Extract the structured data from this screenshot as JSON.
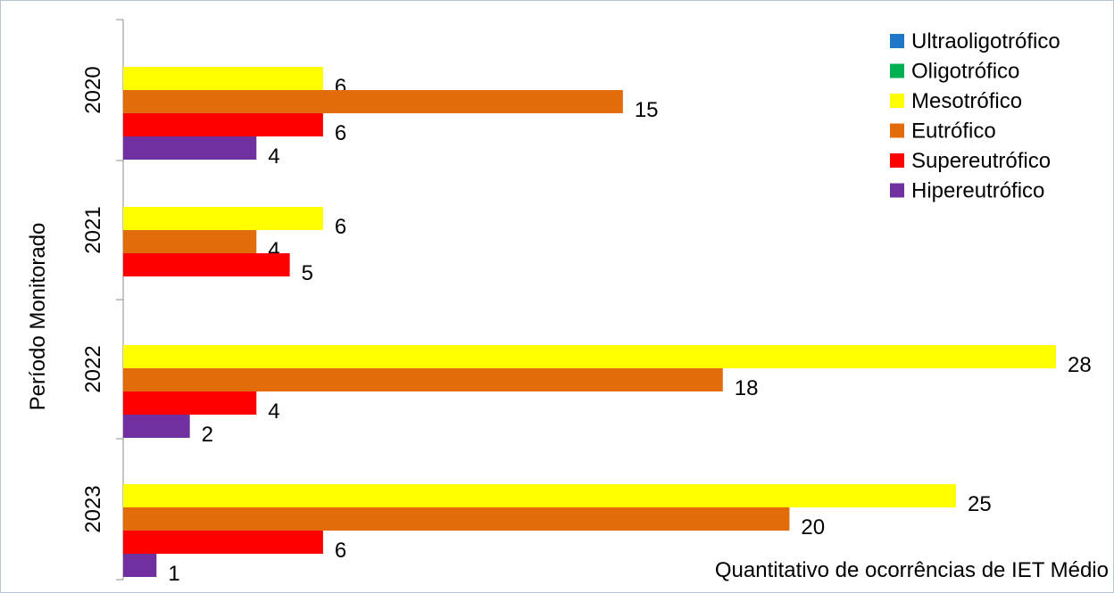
{
  "chart_data": {
    "type": "bar",
    "orientation": "horizontal",
    "categories": [
      "2020",
      "2021",
      "2022",
      "2023"
    ],
    "series": [
      {
        "name": "Ultraoligotrófico",
        "color": "#1F77C8",
        "values": [
          0,
          0,
          0,
          0
        ]
      },
      {
        "name": "Oligotrófico",
        "color": "#00B050",
        "values": [
          0,
          0,
          0,
          0
        ]
      },
      {
        "name": "Mesotrófico",
        "color": "#FFFF00",
        "values": [
          6,
          6,
          28,
          25
        ]
      },
      {
        "name": "Eutrófico",
        "color": "#E36C0A",
        "values": [
          15,
          4,
          18,
          20
        ]
      },
      {
        "name": "Supereutrófico",
        "color": "#FF0000",
        "values": [
          6,
          5,
          4,
          6
        ]
      },
      {
        "name": "Hipereutrófico",
        "color": "#7030A0",
        "values": [
          4,
          0,
          2,
          1
        ]
      }
    ],
    "title": "",
    "xlabel": "Quantitativo de ocorrências de IET Médio",
    "ylabel": "Período Monitorado",
    "xlim": [
      0,
      28
    ],
    "grid": false,
    "legend_position": "top-right"
  }
}
